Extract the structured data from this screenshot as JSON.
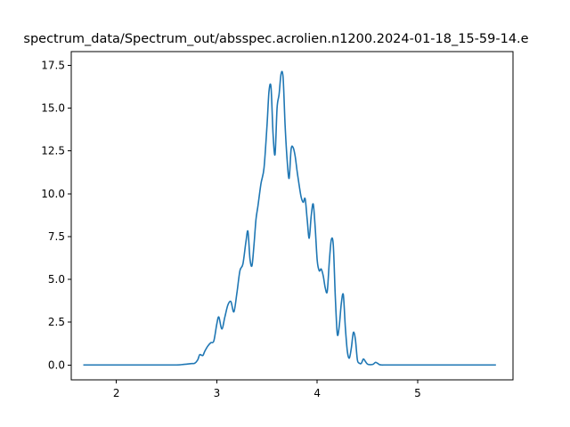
{
  "chart_data": {
    "type": "line",
    "title": "spectrum_data/Spectrum_out/absspec.acrolien.n1200.2024-01-18_15-59-14.e",
    "xlabel": "",
    "ylabel": "",
    "xlim": [
      1.55,
      5.95
    ],
    "ylim": [
      -0.87,
      18.3
    ],
    "grid": false,
    "line_color": "#1f77b4",
    "x_ticks": [
      2,
      3,
      4,
      5
    ],
    "x_tick_labels": [
      "2",
      "3",
      "4",
      "5"
    ],
    "y_ticks": [
      0.0,
      2.5,
      5.0,
      7.5,
      10.0,
      12.5,
      15.0,
      17.5
    ],
    "y_tick_labels": [
      "0.0",
      "2.5",
      "5.0",
      "7.5",
      "10.0",
      "12.5",
      "15.0",
      "17.5"
    ],
    "series": [
      {
        "x": [
          1.67,
          2.0,
          2.4,
          2.6,
          2.65,
          2.7,
          2.75,
          2.78,
          2.81,
          2.83,
          2.86,
          2.88,
          2.91,
          2.94,
          2.97,
          3.0,
          3.02,
          3.05,
          3.08,
          3.11,
          3.14,
          3.17,
          3.2,
          3.23,
          3.26,
          3.29,
          3.31,
          3.33,
          3.35,
          3.37,
          3.39,
          3.41,
          3.44,
          3.47,
          3.5,
          3.52,
          3.54,
          3.56,
          3.58,
          3.6,
          3.62,
          3.64,
          3.66,
          3.68,
          3.7,
          3.72,
          3.74,
          3.76,
          3.78,
          3.8,
          3.82,
          3.84,
          3.86,
          3.88,
          3.9,
          3.92,
          3.94,
          3.96,
          3.98,
          4.0,
          4.02,
          4.04,
          4.06,
          4.08,
          4.1,
          4.12,
          4.14,
          4.16,
          4.18,
          4.2,
          4.22,
          4.24,
          4.26,
          4.28,
          4.3,
          4.32,
          4.34,
          4.36,
          4.38,
          4.4,
          4.42,
          4.44,
          4.46,
          4.48,
          4.5,
          4.52,
          4.54,
          4.56,
          4.58,
          4.6,
          4.62,
          4.64,
          4.66,
          4.68,
          4.7,
          4.72,
          4.74,
          4.76,
          4.78,
          4.8,
          4.83,
          4.86,
          4.9,
          5.0,
          5.5,
          5.78
        ],
        "y": [
          0.0,
          0.0,
          0.0,
          0.0,
          0.02,
          0.05,
          0.08,
          0.1,
          0.3,
          0.6,
          0.55,
          0.8,
          1.1,
          1.3,
          1.4,
          2.4,
          2.8,
          2.1,
          2.8,
          3.5,
          3.7,
          3.1,
          4.2,
          5.5,
          5.9,
          7.2,
          7.8,
          6.2,
          5.8,
          7.0,
          8.5,
          9.3,
          10.6,
          11.5,
          14.0,
          16.0,
          16.2,
          13.5,
          12.3,
          15.0,
          15.8,
          17.0,
          16.8,
          14.0,
          12.0,
          10.9,
          12.6,
          12.7,
          12.2,
          11.3,
          10.5,
          9.8,
          9.5,
          9.7,
          8.5,
          7.4,
          8.7,
          9.4,
          8.0,
          6.1,
          5.5,
          5.6,
          5.2,
          4.5,
          4.3,
          6.0,
          7.3,
          7.0,
          4.0,
          1.8,
          2.3,
          3.6,
          4.1,
          2.2,
          0.8,
          0.4,
          1.0,
          1.9,
          1.5,
          0.3,
          0.1,
          0.1,
          0.35,
          0.2,
          0.05,
          0.02,
          0.02,
          0.05,
          0.15,
          0.1,
          0.02,
          0.0,
          0.0,
          0.0,
          0.0,
          0.0,
          0.0,
          0.0,
          0.0,
          0.0,
          0.0,
          0.0,
          0.0,
          0.0,
          0.0,
          0.0
        ]
      }
    ]
  }
}
